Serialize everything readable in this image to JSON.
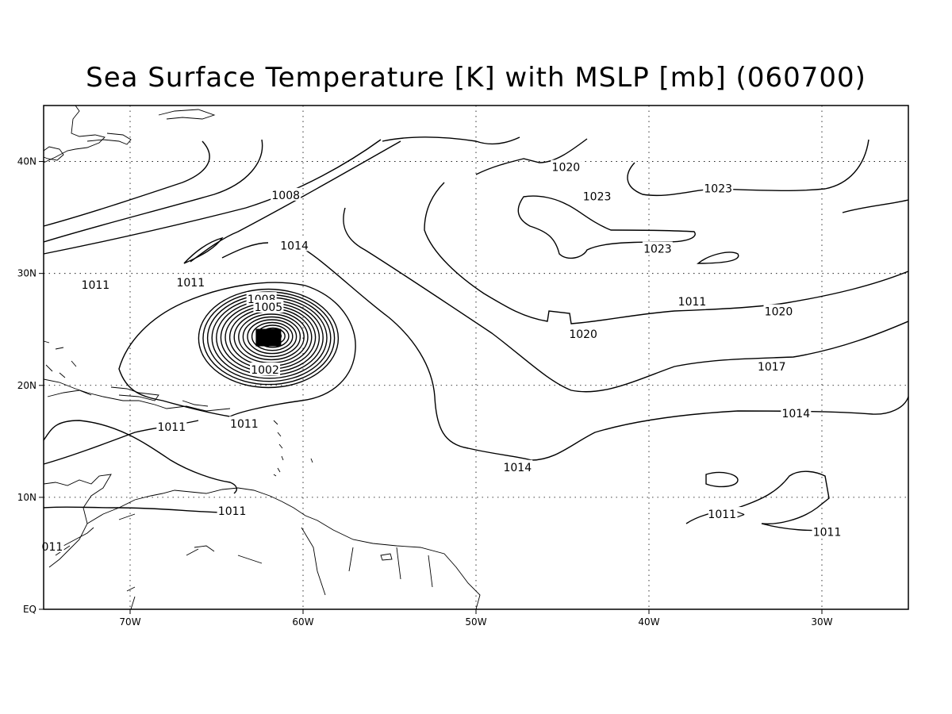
{
  "title": "Sea Surface Temperature [K] with MSLP [mb] (060700)",
  "map": {
    "lon_range": [
      -75,
      -25
    ],
    "lat_range": [
      0,
      45
    ],
    "lon_ticks": [
      {
        "lon": -70,
        "label": "70W"
      },
      {
        "lon": -60,
        "label": "60W"
      },
      {
        "lon": -50,
        "label": "50W"
      },
      {
        "lon": -40,
        "label": "40W"
      },
      {
        "lon": -30,
        "label": "30W"
      }
    ],
    "lat_ticks": [
      {
        "lat": 0,
        "label": "EQ"
      },
      {
        "lat": 10,
        "label": "10N"
      },
      {
        "lat": 20,
        "label": "20N"
      },
      {
        "lat": 30,
        "label": "30N"
      },
      {
        "lat": 40,
        "label": "40N"
      }
    ],
    "grid": true
  },
  "contour_labels": [
    {
      "lon": -37.5,
      "lat": 27.5,
      "text": "1011"
    },
    {
      "lon": -61.0,
      "lat": 37.0,
      "text": "1008"
    },
    {
      "lon": -60.5,
      "lat": 32.5,
      "text": "1014"
    },
    {
      "lon": -44.8,
      "lat": 39.5,
      "text": "1020"
    },
    {
      "lon": -43.0,
      "lat": 36.9,
      "text": "1023"
    },
    {
      "lon": -36.0,
      "lat": 37.6,
      "text": "1023"
    },
    {
      "lon": -39.5,
      "lat": 32.2,
      "text": "1023"
    },
    {
      "lon": -66.5,
      "lat": 29.2,
      "text": "1011"
    },
    {
      "lon": -72.0,
      "lat": 29.0,
      "text": "1011"
    },
    {
      "lon": -62.4,
      "lat": 27.7,
      "text": "1008"
    },
    {
      "lon": -62.0,
      "lat": 27.0,
      "text": "1005"
    },
    {
      "lon": -43.8,
      "lat": 24.6,
      "text": "1020"
    },
    {
      "lon": -32.5,
      "lat": 26.6,
      "text": "1020"
    },
    {
      "lon": -62.2,
      "lat": 21.4,
      "text": "1002"
    },
    {
      "lon": -32.9,
      "lat": 21.7,
      "text": "1017"
    },
    {
      "lon": -31.5,
      "lat": 17.5,
      "text": "1014"
    },
    {
      "lon": -63.4,
      "lat": 16.6,
      "text": "1011"
    },
    {
      "lon": -67.6,
      "lat": 16.3,
      "text": "1011"
    },
    {
      "lon": -47.6,
      "lat": 12.7,
      "text": "1014"
    },
    {
      "lon": -64.1,
      "lat": 8.8,
      "text": "1011"
    },
    {
      "lon": -35.5,
      "lat": 8.5,
      "text": "1011>"
    },
    {
      "lon": -29.7,
      "lat": 6.9,
      "text": "1011"
    },
    {
      "lon": -74.5,
      "lat": 5.6,
      "text": "011"
    }
  ]
}
